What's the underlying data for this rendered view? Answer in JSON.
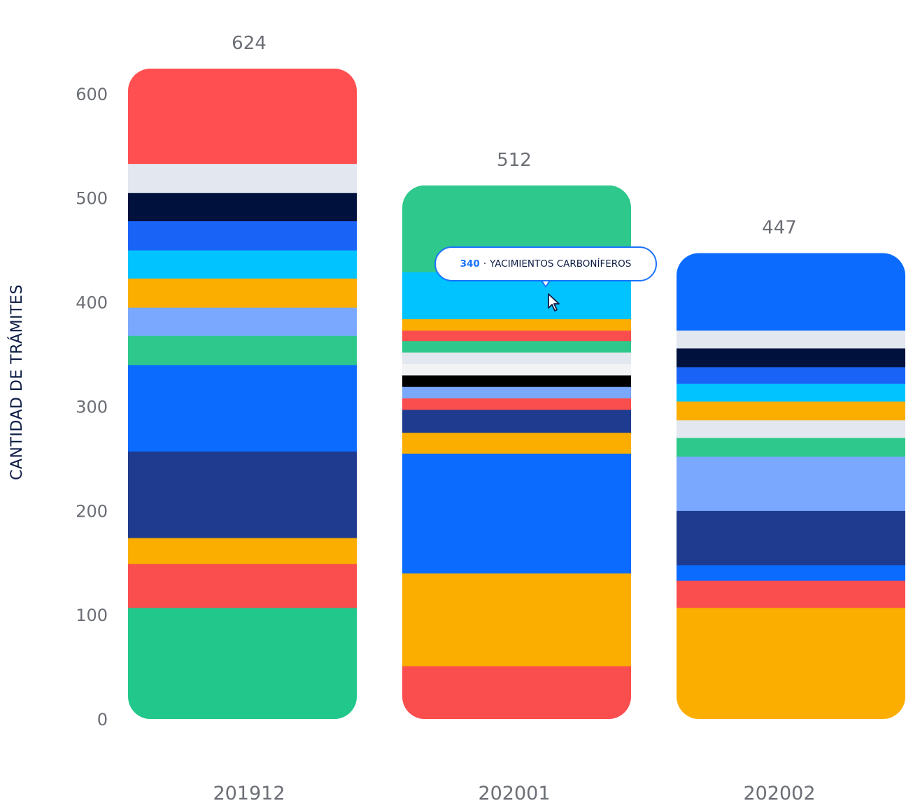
{
  "chart_data": {
    "type": "bar",
    "stacked": true,
    "ylabel": "CANTIDAD DE TRÁMITES",
    "xlabel": "",
    "ylim": [
      0,
      624
    ],
    "yticks": [
      0,
      100,
      200,
      300,
      400,
      500,
      600
    ],
    "categories": [
      "201912",
      "202001",
      "202002"
    ],
    "totals": [
      624,
      512,
      447
    ],
    "grid": false,
    "bars": [
      {
        "category": "201912",
        "segments": [
          {
            "value": 107,
            "color": "#22c78c"
          },
          {
            "value": 42,
            "color": "#fa4d4e"
          },
          {
            "value": 25,
            "color": "#fbae00"
          },
          {
            "value": 83,
            "color": "#1f3b8f"
          },
          {
            "value": 83,
            "color": "#0b6bff"
          },
          {
            "value": 28,
            "color": "#2fc88c"
          },
          {
            "value": 27,
            "color": "#7aa8ff"
          },
          {
            "value": 28,
            "color": "#fbae00"
          },
          {
            "value": 27,
            "color": "#00c3ff"
          },
          {
            "value": 28,
            "color": "#1a63f7"
          },
          {
            "value": 27,
            "color": "#00113d"
          },
          {
            "value": 28,
            "color": "#e3e7ef"
          },
          {
            "value": 91,
            "color": "#ff4f50"
          }
        ]
      },
      {
        "category": "202001",
        "segments": [
          {
            "value": 51,
            "color": "#fa4d4e"
          },
          {
            "value": 89,
            "color": "#fbae00"
          },
          {
            "value": 115,
            "color": "#0b6bff"
          },
          {
            "value": 20,
            "color": "#fbae00"
          },
          {
            "value": 22,
            "color": "#1f3b8f"
          },
          {
            "value": 11,
            "color": "#fa4d4e"
          },
          {
            "value": 11,
            "color": "#7aa8ff"
          },
          {
            "value": 11,
            "color": "#000000"
          },
          {
            "value": 11,
            "color": "#f2f3f5"
          },
          {
            "value": 11,
            "color": "#e3e7ef"
          },
          {
            "value": 11,
            "color": "#2fc88c"
          },
          {
            "value": 10,
            "color": "#fa4d4e"
          },
          {
            "value": 11,
            "color": "#fbae00"
          },
          {
            "value": 45,
            "color": "#00c3ff"
          },
          {
            "value": 83,
            "color": "#2fc88c"
          }
        ]
      },
      {
        "category": "202002",
        "segments": [
          {
            "value": 107,
            "color": "#fbae00"
          },
          {
            "value": 26,
            "color": "#fa4d4e"
          },
          {
            "value": 15,
            "color": "#0b6bff"
          },
          {
            "value": 52,
            "color": "#1f3b8f"
          },
          {
            "value": 52,
            "color": "#7aa8ff"
          },
          {
            "value": 18,
            "color": "#2fc88c"
          },
          {
            "value": 17,
            "color": "#e3e7ef"
          },
          {
            "value": 18,
            "color": "#fbae00"
          },
          {
            "value": 17,
            "color": "#00c3ff"
          },
          {
            "value": 16,
            "color": "#1a63f7"
          },
          {
            "value": 18,
            "color": "#00113d"
          },
          {
            "value": 17,
            "color": "#e3e7ef"
          },
          {
            "value": 74,
            "color": "#0b6bff"
          }
        ]
      }
    ]
  },
  "tooltip": {
    "value": "340",
    "separator": "·",
    "label": "YACIMIENTOS CARBONÍFEROS"
  }
}
